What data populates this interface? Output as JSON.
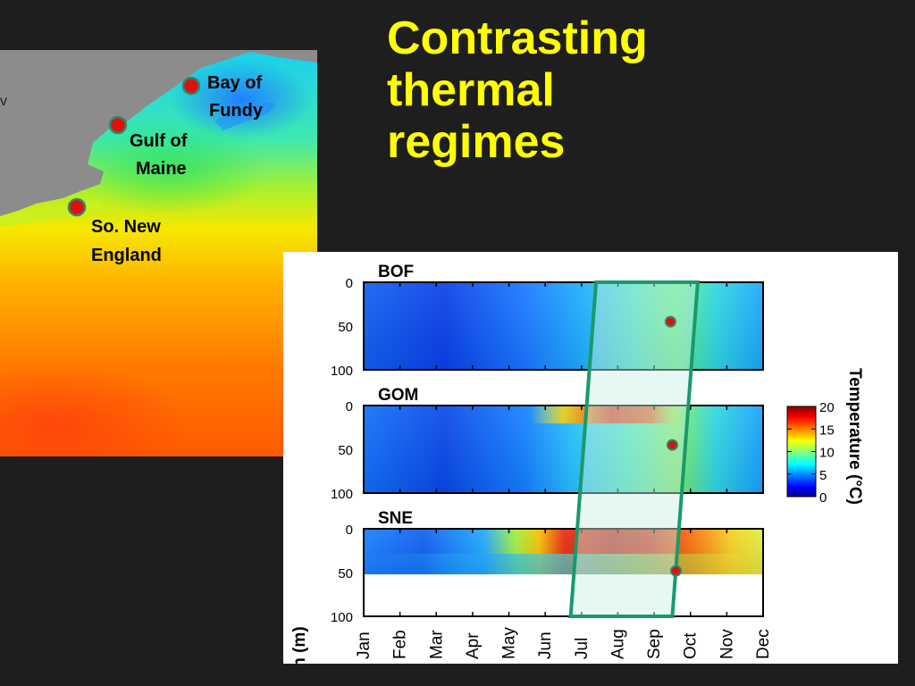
{
  "slide": {
    "title_lines": [
      "Contrasting",
      "thermal",
      "regimes"
    ],
    "accent_color": "#ffff00",
    "background_color": "#1e1e1e"
  },
  "map": {
    "land_color": "#8c8c8c",
    "sites": [
      {
        "lines": [
          "Bay of",
          "Fundy"
        ]
      },
      {
        "lines": [
          "Gulf  of",
          "Maine"
        ]
      },
      {
        "lines": [
          "So. New",
          "England"
        ]
      }
    ],
    "marker_color": "#e01010",
    "marker_ring_color": "#2a8a6a"
  },
  "chart_data": {
    "type": "heatmap",
    "panels": [
      {
        "label": "BOF",
        "max_depth": 100,
        "sample": {
          "month": 8.45,
          "depth": 45
        }
      },
      {
        "label": "GOM",
        "max_depth": 100,
        "sample": {
          "month": 8.5,
          "depth": 45
        }
      },
      {
        "label": "SNE",
        "max_depth": 100,
        "data_bottom_depth": 52,
        "sample": {
          "month": 8.6,
          "depth": 48
        }
      }
    ],
    "x_tick_labels": [
      "Jan",
      "Feb",
      "Mar",
      "Apr",
      "May",
      "Jun",
      "Jul",
      "Aug",
      "Sep",
      "Oct",
      "Nov",
      "Dec"
    ],
    "y_ticks": [
      0,
      50,
      100
    ],
    "ylabel": "Depth (m)",
    "colorbar": {
      "label": "Temperature (°C)",
      "ticks": [
        0,
        5,
        10,
        15,
        20
      ],
      "range": [
        0,
        20
      ]
    },
    "highlight_band": {
      "top_months": [
        6.4,
        9.2
      ],
      "bottom_months": [
        5.7,
        8.5
      ],
      "stroke_color": "#1a9a6a",
      "fill_color": "#c8f0e6"
    }
  }
}
